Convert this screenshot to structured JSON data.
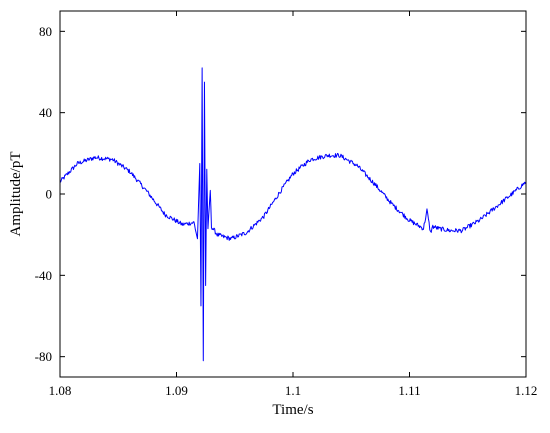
{
  "chart_data": {
    "type": "line",
    "title": "",
    "xlabel": "Time/s",
    "ylabel": "Amplitude/pT",
    "xlim": [
      1.08,
      1.12
    ],
    "ylim": [
      -90,
      90
    ],
    "xticks": [
      1.08,
      1.09,
      1.1,
      1.11,
      1.12
    ],
    "xtick_labels": [
      "1.08",
      "1.09",
      "1.1",
      "1.11",
      "1.12"
    ],
    "yticks": [
      -80,
      -40,
      0,
      40,
      80
    ],
    "ytick_labels": [
      "-80",
      "-40",
      "0",
      "40",
      "80"
    ],
    "grid": false,
    "legend": "none",
    "colors": {
      "series": "#0000ff",
      "axes": "#000000"
    },
    "series": [
      {
        "x": [
          1.08,
          1.0815,
          1.083,
          1.0845,
          1.086,
          1.0875,
          1.089,
          1.0905,
          1.0915,
          1.0918,
          1.092,
          1.0921,
          1.0922,
          1.0923,
          1.0924,
          1.0925,
          1.0926,
          1.0927,
          1.0929,
          1.093,
          1.0935,
          1.094,
          1.0947,
          1.096,
          1.0975,
          1.099,
          1.1,
          1.1015,
          1.103,
          1.104,
          1.1055,
          1.107,
          1.1085,
          1.11,
          1.1112,
          1.1115,
          1.1118,
          1.112,
          1.1125,
          1.1135,
          1.1145,
          1.116,
          1.1175,
          1.119,
          1.12
        ],
        "y": [
          6,
          15,
          18,
          17,
          11,
          1,
          -10,
          -15,
          -14,
          -22,
          15,
          -55,
          62,
          -82,
          55,
          -45,
          12,
          -18,
          2,
          -16,
          -20,
          -21,
          -22,
          -19,
          -11,
          2,
          10,
          17,
          19,
          19,
          14,
          5,
          -5,
          -13,
          -17,
          -8,
          -19,
          -16,
          -17,
          -18,
          -18,
          -13,
          -6,
          1,
          6
        ]
      }
    ]
  }
}
